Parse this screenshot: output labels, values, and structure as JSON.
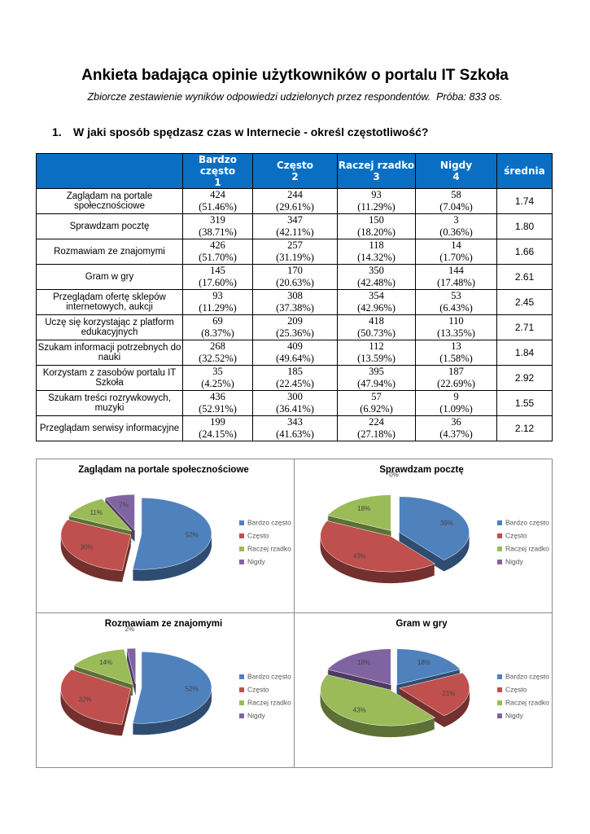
{
  "header": {
    "title": "Ankieta badająca opinie użytkowników o portalu IT Szkoła",
    "subtitle": "Zbiorcze zestawienie wyników odpowiedzi udzielonych przez respondentów.  Próba: 833 os."
  },
  "question": {
    "number": "1.",
    "text": "W jaki sposób spędzasz czas w Internecie - określ częstotliwość?"
  },
  "table": {
    "columns": [
      {
        "name": "Bardzo często",
        "code": 1
      },
      {
        "name": "Często",
        "code": 2
      },
      {
        "name": "Raczej rzadko",
        "code": 3
      },
      {
        "name": "Nigdy",
        "code": 4
      }
    ],
    "mean_header": "średnia",
    "rows": [
      {
        "label": "Zaglądam na portale społecznościowe",
        "cells": [
          {
            "n": 424,
            "pct": "(51.46%)"
          },
          {
            "n": 244,
            "pct": "(29.61%)"
          },
          {
            "n": 93,
            "pct": "(11.29%)"
          },
          {
            "n": 58,
            "pct": "(7.04%)"
          }
        ],
        "mean": "1.74"
      },
      {
        "label": "Sprawdzam pocztę",
        "cells": [
          {
            "n": 319,
            "pct": "(38.71%)"
          },
          {
            "n": 347,
            "pct": "(42.11%)"
          },
          {
            "n": 150,
            "pct": "(18.20%)"
          },
          {
            "n": 3,
            "pct": "(0.36%)"
          }
        ],
        "mean": "1.80"
      },
      {
        "label": "Rozmawiam ze znajomymi",
        "cells": [
          {
            "n": 426,
            "pct": "(51.70%)"
          },
          {
            "n": 257,
            "pct": "(31.19%)"
          },
          {
            "n": 118,
            "pct": "(14.32%)"
          },
          {
            "n": 14,
            "pct": "(1.70%)"
          }
        ],
        "mean": "1.66"
      },
      {
        "label": "Gram w gry",
        "cells": [
          {
            "n": 145,
            "pct": "(17.60%)"
          },
          {
            "n": 170,
            "pct": "(20.63%)"
          },
          {
            "n": 350,
            "pct": "(42.48%)"
          },
          {
            "n": 144,
            "pct": "(17.48%)"
          }
        ],
        "mean": "2.61"
      },
      {
        "label": "Przeglądam ofertę sklepów internetowych, aukcji",
        "cells": [
          {
            "n": 93,
            "pct": "(11.29%)"
          },
          {
            "n": 308,
            "pct": "(37.38%)"
          },
          {
            "n": 354,
            "pct": "(42.96%)"
          },
          {
            "n": 53,
            "pct": "(6.43%)"
          }
        ],
        "mean": "2.45"
      },
      {
        "label": "Uczę się korzystając z platform edukacyjnych",
        "cells": [
          {
            "n": 69,
            "pct": "(8.37%)"
          },
          {
            "n": 209,
            "pct": "(25.36%)"
          },
          {
            "n": 418,
            "pct": "(50.73%)"
          },
          {
            "n": 110,
            "pct": "(13.35%)"
          }
        ],
        "mean": "2.71"
      },
      {
        "label": "Szukam informacji potrzebnych do nauki",
        "cells": [
          {
            "n": 268,
            "pct": "(32.52%)"
          },
          {
            "n": 409,
            "pct": "(49.64%)"
          },
          {
            "n": 112,
            "pct": "(13.59%)"
          },
          {
            "n": 13,
            "pct": "(1.58%)"
          }
        ],
        "mean": "1.84"
      },
      {
        "label": "Korzystam z zasobów portalu IT Szkoła",
        "cells": [
          {
            "n": 35,
            "pct": "(4.25%)"
          },
          {
            "n": 185,
            "pct": "(22.45%)"
          },
          {
            "n": 395,
            "pct": "(47.94%)"
          },
          {
            "n": 187,
            "pct": "(22.69%)"
          }
        ],
        "mean": "2.92"
      },
      {
        "label": "Szukam treści rozrywkowych, muzyki",
        "cells": [
          {
            "n": 436,
            "pct": "(52.91%)"
          },
          {
            "n": 300,
            "pct": "(36.41%)"
          },
          {
            "n": 57,
            "pct": "(6.92%)"
          },
          {
            "n": 9,
            "pct": "(1.09%)"
          }
        ],
        "mean": "1.55"
      },
      {
        "label": "Przeglądam serwisy informacyjne",
        "cells": [
          {
            "n": 199,
            "pct": "(24.15%)"
          },
          {
            "n": 343,
            "pct": "(41.63%)"
          },
          {
            "n": 224,
            "pct": "(27.18%)"
          },
          {
            "n": 36,
            "pct": "(4.37%)"
          }
        ],
        "mean": "2.12"
      }
    ]
  },
  "chart_data": [
    {
      "type": "pie",
      "title": "Zaglądam na portale społecznościowe",
      "categories": [
        "Bardzo często",
        "Często",
        "Raczej rzadko",
        "Nigdy"
      ],
      "values": [
        52,
        30,
        11,
        7
      ],
      "value_labels": [
        "52%",
        "30%",
        "11%",
        "7%"
      ],
      "colors": [
        "#4f81bd",
        "#c0504d",
        "#9bbb59",
        "#8064a2"
      ]
    },
    {
      "type": "pie",
      "title": "Sprawdzam pocztę",
      "categories": [
        "Bardzo często",
        "Często",
        "Raczej rzadko",
        "Nigdy"
      ],
      "values": [
        39,
        43,
        18,
        0
      ],
      "value_labels": [
        "39%",
        "43%",
        "18%",
        "0%"
      ],
      "colors": [
        "#4f81bd",
        "#c0504d",
        "#9bbb59",
        "#8064a2"
      ]
    },
    {
      "type": "pie",
      "title": "Rozmawiam ze znajomymi",
      "categories": [
        "Bardzo często",
        "Często",
        "Raczej rzadko",
        "Nigdy"
      ],
      "values": [
        52,
        32,
        14,
        2
      ],
      "value_labels": [
        "52%",
        "32%",
        "14%",
        "2%"
      ],
      "colors": [
        "#4f81bd",
        "#c0504d",
        "#9bbb59",
        "#8064a2"
      ]
    },
    {
      "type": "pie",
      "title": "Gram w gry",
      "categories": [
        "Bardzo często",
        "Często",
        "Raczej rzadko",
        "Nigdy"
      ],
      "values": [
        18,
        21,
        43,
        18
      ],
      "value_labels": [
        "18%",
        "21%",
        "43%",
        "18%"
      ],
      "colors": [
        "#4f81bd",
        "#c0504d",
        "#9bbb59",
        "#8064a2"
      ]
    }
  ]
}
